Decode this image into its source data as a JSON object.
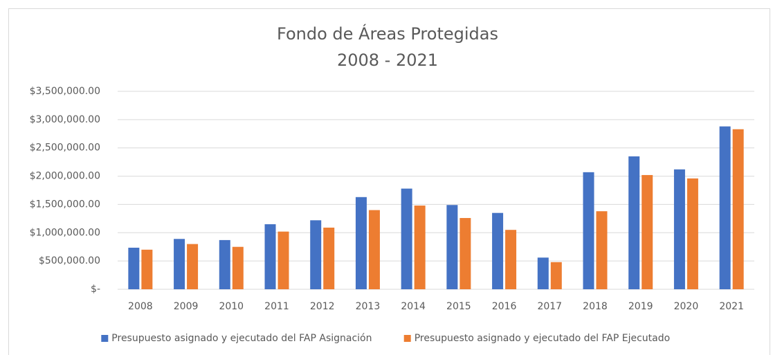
{
  "chart_data": {
    "type": "bar",
    "title": "Fondo de Áreas Protegidas",
    "subtitle": "2008 - 2021",
    "categories": [
      "2008",
      "2009",
      "2010",
      "2011",
      "2012",
      "2013",
      "2014",
      "2015",
      "2016",
      "2017",
      "2018",
      "2019",
      "2020",
      "2021"
    ],
    "series": [
      {
        "name": "Presupuesto asignado y ejecutado del FAP Asignación",
        "color": "#4472c4",
        "values": [
          735000,
          890000,
          870000,
          1150000,
          1220000,
          1630000,
          1780000,
          1490000,
          1350000,
          560000,
          2070000,
          2350000,
          2120000,
          2880000
        ]
      },
      {
        "name": "Presupuesto asignado y ejecutado del FAP Ejecutado",
        "color": "#ed7d31",
        "values": [
          700000,
          800000,
          750000,
          1020000,
          1090000,
          1400000,
          1480000,
          1260000,
          1050000,
          480000,
          1380000,
          2020000,
          1960000,
          2830000
        ]
      }
    ],
    "ylim": [
      0,
      3500000
    ],
    "yticks": [
      {
        "value": 0,
        "label": "$-"
      },
      {
        "value": 500000,
        "label": "$500,000.00"
      },
      {
        "value": 1000000,
        "label": "$1,000,000.00"
      },
      {
        "value": 1500000,
        "label": "$1,500,000.00"
      },
      {
        "value": 2000000,
        "label": "$2,000,000.00"
      },
      {
        "value": 2500000,
        "label": "$2,500,000.00"
      },
      {
        "value": 3000000,
        "label": "$3,000,000.00"
      },
      {
        "value": 3500000,
        "label": "$3,500,000.00"
      }
    ],
    "grid": true,
    "legend": "bottom"
  }
}
